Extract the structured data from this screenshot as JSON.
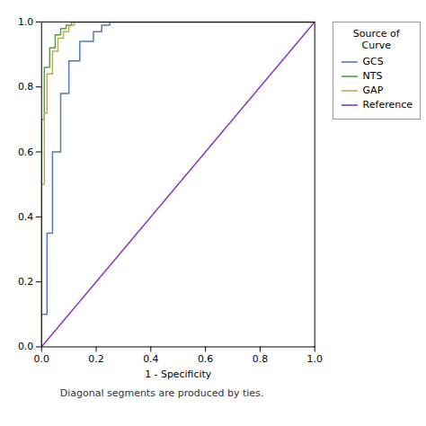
{
  "chart_data": {
    "type": "line",
    "xlabel": "1 - Specificity",
    "footnote": "Diagonal segments are produced by ties.",
    "legend_title": "Source of\nCurve",
    "legend": "right",
    "grid": false,
    "xlim": [
      0.0,
      1.0
    ],
    "ylim": [
      0.0,
      1.0
    ],
    "xticks": [
      {
        "value": 0.0,
        "label": "0.0"
      },
      0.2,
      0.4,
      0.6,
      0.8,
      {
        "value": 1.0,
        "label": "1.0"
      }
    ],
    "yticks": [
      {
        "value": 0.0,
        "label": "0.0"
      },
      0.2,
      0.4,
      0.6,
      0.8,
      {
        "value": 1.0,
        "label": "1.0"
      }
    ],
    "series": [
      {
        "name": "GCS",
        "color": "#5577bb",
        "x": [
          0.0,
          0.0,
          0.02,
          0.02,
          0.04,
          0.04,
          0.07,
          0.07,
          0.1,
          0.1,
          0.14,
          0.14,
          0.19,
          0.19,
          0.22,
          0.22,
          0.25,
          0.25,
          1.0
        ],
        "values": [
          0.0,
          0.1,
          0.1,
          0.35,
          0.35,
          0.6,
          0.6,
          0.78,
          0.78,
          0.88,
          0.88,
          0.94,
          0.94,
          0.97,
          0.97,
          0.99,
          0.99,
          1.0,
          1.0
        ]
      },
      {
        "name": "NTS",
        "color": "#44aa33",
        "x": [
          0.0,
          0.0,
          0.01,
          0.01,
          0.03,
          0.03,
          0.05,
          0.05,
          0.07,
          0.07,
          0.09,
          0.09,
          0.11,
          0.11,
          1.0
        ],
        "values": [
          0.0,
          0.7,
          0.7,
          0.86,
          0.86,
          0.92,
          0.92,
          0.96,
          0.96,
          0.98,
          0.98,
          0.99,
          0.99,
          1.0,
          1.0
        ]
      },
      {
        "name": "GAP",
        "color": "#bbaa55",
        "x": [
          0.0,
          0.0,
          0.01,
          0.01,
          0.02,
          0.02,
          0.04,
          0.04,
          0.06,
          0.06,
          0.08,
          0.08,
          0.1,
          0.1,
          0.12,
          0.12,
          1.0
        ],
        "values": [
          0.0,
          0.5,
          0.5,
          0.72,
          0.72,
          0.84,
          0.84,
          0.91,
          0.91,
          0.95,
          0.95,
          0.97,
          0.97,
          0.99,
          0.99,
          1.0,
          1.0
        ]
      },
      {
        "name": "Reference",
        "color": "#8833bb",
        "x": [
          0.0,
          1.0
        ],
        "values": [
          0.0,
          1.0
        ]
      }
    ]
  }
}
